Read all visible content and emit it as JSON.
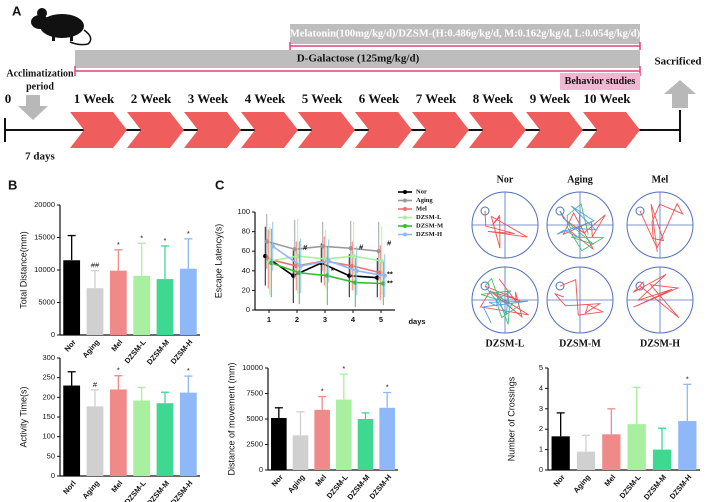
{
  "panel_labels": [
    "A",
    "B",
    "C"
  ],
  "panel_a": {
    "treatment": "Melatonin(100mg/kg/d)/DZSM-(H:0.486g/kg/d, M:0.162g/kg/d, L:0.054g/kg/d)",
    "galactose": "D-Galactose (125mg/kg/d)",
    "acclimatization": [
      "Acclimatization",
      "period"
    ],
    "behavior": "Behavior studies",
    "sacrificed": "Sacrificed",
    "start": "0",
    "weeks": [
      "1 Week",
      "2 Week",
      "3 Week",
      "4 Week",
      "5 Week",
      "6 Week",
      "7 Week",
      "8 Week",
      "9 Week",
      "10 Week"
    ],
    "days": "7 days"
  },
  "maze_labels": [
    "Nor",
    "Aging",
    "Mel",
    "DZSM-L",
    "DZSM-M",
    "DZSM-H"
  ],
  "chart_data": [
    {
      "type": "bar",
      "y_label": "Total Distance(mm)",
      "categories": [
        "Nor",
        "Aging",
        "Mel",
        "DZSM-L",
        "DZSM-M",
        "DZSM-H"
      ],
      "values": [
        11500,
        7200,
        9900,
        9100,
        8600,
        10200
      ],
      "errors": [
        3800,
        2700,
        3200,
        5000,
        5100,
        4600
      ],
      "annotations": [
        null,
        "##",
        "*",
        "*",
        "*",
        "*"
      ],
      "colors": [
        "#000000",
        "#d0d0d0",
        "#f08a8a",
        "#a8f0a0",
        "#3fd890",
        "#8fb8f8"
      ],
      "ylim": [
        0,
        20000
      ],
      "yticks": [
        0,
        5000,
        10000,
        15000,
        20000
      ]
    },
    {
      "type": "bar",
      "y_label": "Activity Time(s)",
      "categories": [
        "Norl",
        "Aging",
        "Mel",
        "DZSM-L",
        "DZSM-M",
        "DZSM-H"
      ],
      "values": [
        230,
        177,
        220,
        192,
        185,
        212
      ],
      "errors": [
        35,
        42,
        35,
        33,
        28,
        42
      ],
      "annotations": [
        null,
        "#",
        "*",
        null,
        null,
        "*"
      ],
      "colors": [
        "#000000",
        "#d0d0d0",
        "#f08a8a",
        "#a8f0a0",
        "#3fd890",
        "#8fb8f8"
      ],
      "ylim": [
        0,
        300
      ],
      "yticks": [
        0,
        50,
        100,
        150,
        200,
        250,
        300
      ]
    },
    {
      "type": "line",
      "y_label": "Escape Latency(s)",
      "x_label": "days",
      "x": [
        1,
        2,
        3,
        4,
        5
      ],
      "xlim": [
        0.5,
        5.5
      ],
      "xticks": [
        1,
        2,
        3,
        4,
        5
      ],
      "ylim": [
        0,
        100
      ],
      "yticks": [
        0,
        20,
        40,
        60,
        80,
        100
      ],
      "series": [
        {
          "name": "Nor",
          "color": "#000000",
          "values": [
            55,
            35,
            48,
            35,
            33
          ],
          "errors": [
            30,
            28,
            20,
            22,
            20
          ]
        },
        {
          "name": "Aging",
          "color": "#999999",
          "values": [
            70,
            62,
            65,
            63,
            60
          ],
          "errors": [
            28,
            30,
            25,
            28,
            30
          ]
        },
        {
          "name": "Mel",
          "color": "#f07070",
          "values": [
            52,
            45,
            50,
            45,
            38
          ],
          "errors": [
            30,
            25,
            25,
            25,
            28
          ]
        },
        {
          "name": "DZSM-L",
          "color": "#a8f0a0",
          "values": [
            50,
            55,
            52,
            55,
            50
          ],
          "errors": [
            35,
            38,
            30,
            35,
            35
          ]
        },
        {
          "name": "DZSM-M",
          "color": "#30c030",
          "values": [
            48,
            38,
            35,
            28,
            27
          ],
          "errors": [
            35,
            32,
            30,
            25,
            22
          ]
        },
        {
          "name": "DZSM-H",
          "color": "#8fb8f8",
          "values": [
            65,
            45,
            50,
            40,
            35
          ],
          "errors": [
            25,
            28,
            22,
            25,
            22
          ]
        }
      ],
      "annotations": [
        {
          "text": "#",
          "x": 2,
          "y": 63
        },
        {
          "text": "*",
          "x": 3,
          "y": 40
        },
        {
          "text": "#",
          "x": 4,
          "y": 64
        },
        {
          "text": "#",
          "x": 5,
          "y": 68
        },
        {
          "text": "**",
          "x": 5,
          "y": 36
        },
        {
          "text": "**",
          "x": 5,
          "y": 27
        }
      ]
    },
    {
      "type": "bar",
      "y_label": "Distance of movement (mm)",
      "categories": [
        "Nor",
        "Aging",
        "Mel",
        "DZSM-L",
        "DZSM-M",
        "DZSM-H"
      ],
      "values": [
        5100,
        3400,
        5900,
        6900,
        5000,
        6100
      ],
      "errors": [
        1000,
        2300,
        1300,
        2500,
        600,
        1500
      ],
      "annotations": [
        null,
        null,
        "*",
        "*",
        null,
        "*"
      ],
      "colors": [
        "#000000",
        "#d0d0d0",
        "#f08a8a",
        "#a8f0a0",
        "#3fd890",
        "#8fb8f8"
      ],
      "ylim": [
        0,
        10000
      ],
      "yticks": [
        0,
        2500,
        5000,
        7500,
        10000
      ]
    },
    {
      "type": "bar",
      "y_label": "Number of Crossings",
      "categories": [
        "Nor",
        "Aging",
        "Mel",
        "DZSM-L",
        "DZSM-M",
        "DZSM-H"
      ],
      "values": [
        1.65,
        0.9,
        1.75,
        2.25,
        1.0,
        2.4
      ],
      "errors": [
        1.15,
        0.8,
        1.25,
        1.8,
        1.05,
        1.8
      ],
      "annotations": [
        null,
        null,
        null,
        null,
        null,
        "*"
      ],
      "colors": [
        "#000000",
        "#d0d0d0",
        "#f08a8a",
        "#a8f0a0",
        "#3fd890",
        "#8fb8f8"
      ],
      "ylim": [
        0,
        5
      ],
      "yticks": [
        0,
        1,
        2,
        3,
        4,
        5
      ]
    }
  ]
}
